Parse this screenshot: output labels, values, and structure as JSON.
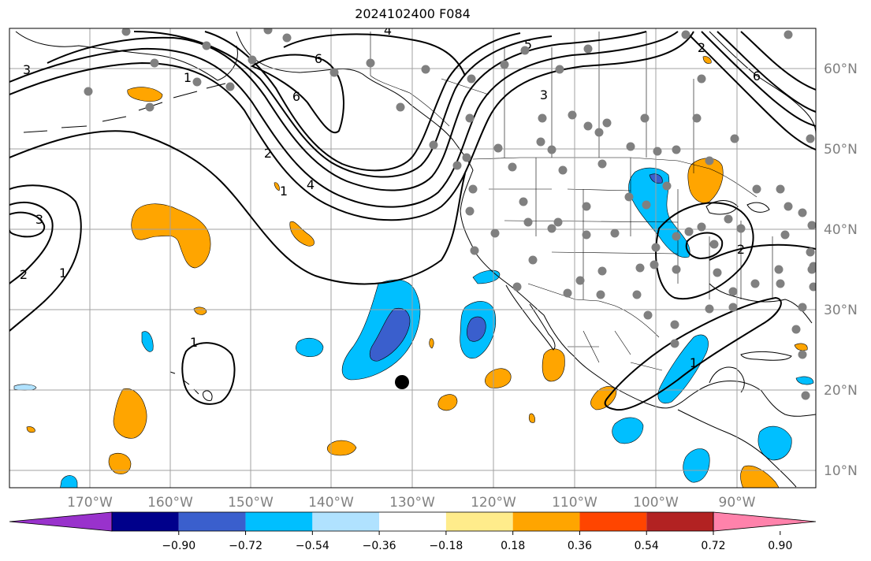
{
  "title": "2024102400 F084",
  "longitude_labels": [
    "170°W",
    "160°W",
    "150°W",
    "140°W",
    "130°W",
    "120°W",
    "110°W",
    "100°W",
    "90°W"
  ],
  "latitude_labels": [
    "60°N",
    "50°N",
    "40°N",
    "30°N",
    "20°N",
    "10°N"
  ],
  "colorbar": {
    "labels": [
      "−0.90",
      "−0.72",
      "−0.54",
      "−0.36",
      "−0.18",
      "0.18",
      "0.36",
      "0.54",
      "0.72",
      "0.90"
    ],
    "colors": [
      "#9932cc",
      "#00008b",
      "#3a5fcd",
      "#00bfff",
      "#b0e2ff",
      "#ffffff",
      "#ffec8b",
      "#ffa500",
      "#ff4500",
      "#b22222",
      "#ff82ab"
    ]
  },
  "contour_labels": [
    "3",
    "4",
    "6",
    "5",
    "3",
    "6",
    "1",
    "2",
    "6",
    "4",
    "2",
    "1",
    "3",
    "2",
    "1",
    "1",
    "2",
    "1"
  ],
  "colors": {
    "positive_shading": "#ffa500",
    "negative_shading": "#00bfff",
    "strong_negative": "#3a5fcd",
    "contour": "#000000",
    "gridline": "#a0a0a0",
    "station_marker": "#808080"
  }
}
